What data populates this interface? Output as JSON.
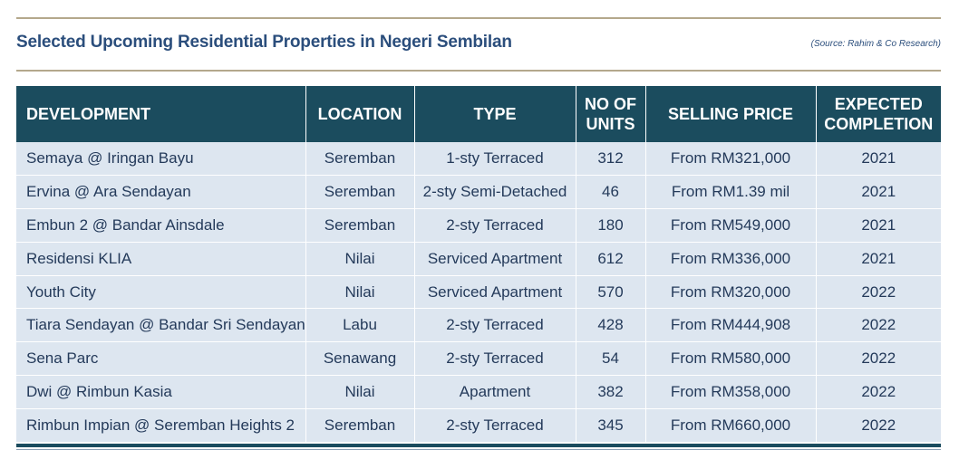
{
  "title": "Selected Upcoming Residential Properties in Negeri Sembilan",
  "source": "(Source: Rahim & Co Research)",
  "columns": {
    "development": "DEVELOPMENT",
    "location": "LOCATION",
    "type": "TYPE",
    "units_line1": "NO OF",
    "units_line2": "UNITS",
    "price": "SELLING PRICE",
    "completion_line1": "EXPECTED",
    "completion_line2": "COMPLETION"
  },
  "rows": [
    {
      "development": "Semaya @ Iringan Bayu",
      "location": "Seremban",
      "type": "1-sty Terraced",
      "units": "312",
      "price": "From RM321,000",
      "completion": "2021"
    },
    {
      "development": "Ervina @ Ara Sendayan",
      "location": "Seremban",
      "type": "2-sty Semi-Detached",
      "units": "46",
      "price": "From RM1.39 mil",
      "completion": "2021"
    },
    {
      "development": "Embun 2 @ Bandar Ainsdale",
      "location": "Seremban",
      "type": "2-sty Terraced",
      "units": "180",
      "price": "From RM549,000",
      "completion": "2021"
    },
    {
      "development": "Residensi KLIA",
      "location": "Nilai",
      "type": "Serviced Apartment",
      "units": "612",
      "price": "From RM336,000",
      "completion": "2021"
    },
    {
      "development": "Youth City",
      "location": "Nilai",
      "type": "Serviced Apartment",
      "units": "570",
      "price": "From RM320,000",
      "completion": "2022"
    },
    {
      "development": "Tiara Sendayan @ Bandar Sri Sendayan",
      "location": "Labu",
      "type": "2-sty Terraced",
      "units": "428",
      "price": "From RM444,908",
      "completion": "2022"
    },
    {
      "development": "Sena Parc",
      "location": "Senawang",
      "type": "2-sty Terraced",
      "units": "54",
      "price": "From RM580,000",
      "completion": "2022"
    },
    {
      "development": "Dwi @ Rimbun Kasia",
      "location": "Nilai",
      "type": "Apartment",
      "units": "382",
      "price": "From RM358,000",
      "completion": "2022"
    },
    {
      "development": "Rimbun Impian @ Seremban Heights 2",
      "location": "Seremban",
      "type": "2-sty Terraced",
      "units": "345",
      "price": "From RM660,000",
      "completion": "2022"
    }
  ]
}
